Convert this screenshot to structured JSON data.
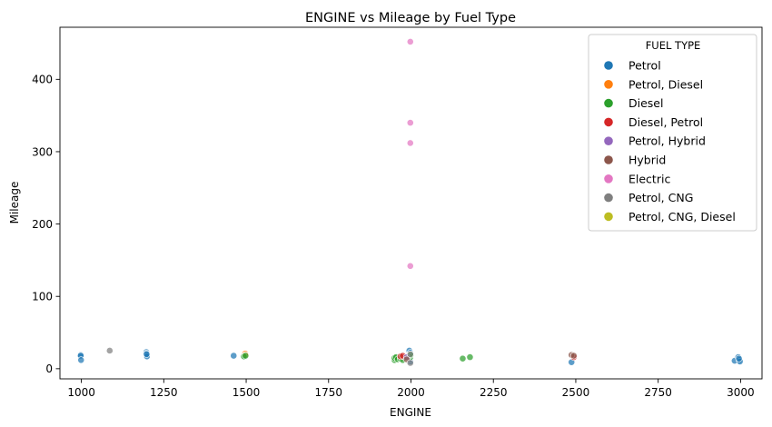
{
  "chart_data": {
    "type": "scatter",
    "title": "ENGINE vs Mileage by Fuel Type",
    "xlabel": "ENGINE",
    "ylabel": "Mileage",
    "xlim": [
      935,
      3065
    ],
    "ylim": [
      -14,
      472
    ],
    "xticks": [
      1000,
      1250,
      1500,
      1750,
      2000,
      2250,
      2500,
      2750,
      3000
    ],
    "yticks": [
      0,
      100,
      200,
      300,
      400
    ],
    "grid": false,
    "legend_title": "FUEL TYPE",
    "legend_position": "top-right",
    "series": [
      {
        "name": "Petrol",
        "color": "#1f77b4",
        "points": [
          [
            998,
            19
          ],
          [
            998,
            18
          ],
          [
            999,
            12
          ],
          [
            1197,
            23
          ],
          [
            1197,
            21
          ],
          [
            1199,
            17
          ],
          [
            1198,
            20
          ],
          [
            1462,
            18
          ],
          [
            1497,
            17
          ],
          [
            1995,
            25
          ],
          [
            1998,
            22
          ],
          [
            1998,
            18
          ],
          [
            1998,
            15
          ],
          [
            1997,
            12
          ],
          [
            1998,
            10
          ],
          [
            1995,
            13
          ],
          [
            1999,
            20
          ],
          [
            2487,
            9
          ],
          [
            2982,
            11
          ],
          [
            2993,
            16
          ],
          [
            2996,
            12
          ],
          [
            2998,
            10
          ],
          [
            2995,
            14
          ]
        ]
      },
      {
        "name": "Petrol, Diesel",
        "color": "#ff7f0e",
        "points": [
          [
            1497,
            21
          ],
          [
            1498,
            19
          ]
        ]
      },
      {
        "name": "Diesel",
        "color": "#2ca02c",
        "points": [
          [
            1493,
            17
          ],
          [
            1498,
            18
          ],
          [
            1950,
            12
          ],
          [
            1950,
            15
          ],
          [
            1955,
            16
          ],
          [
            1960,
            13
          ],
          [
            1968,
            14
          ],
          [
            1970,
            17
          ],
          [
            1975,
            12
          ],
          [
            1984,
            15
          ],
          [
            1995,
            17
          ],
          [
            1998,
            16
          ],
          [
            1999,
            19
          ],
          [
            2157,
            14
          ],
          [
            2179,
            16
          ]
        ]
      },
      {
        "name": "Diesel, Petrol",
        "color": "#d62728",
        "points": [
          [
            1968,
            17
          ],
          [
            1975,
            18
          ],
          [
            2494,
            16
          ]
        ]
      },
      {
        "name": "Petrol, Hybrid",
        "color": "#9467bd",
        "points": [
          [
            1987,
            16
          ]
        ]
      },
      {
        "name": "Hybrid",
        "color": "#8c564b",
        "points": [
          [
            1987,
            13
          ],
          [
            2487,
            19
          ],
          [
            2494,
            18
          ]
        ]
      },
      {
        "name": "Electric",
        "color": "#e377c2",
        "points": [
          [
            1998,
            452
          ],
          [
            1998,
            340
          ],
          [
            1998,
            312
          ],
          [
            1998,
            142
          ]
        ]
      },
      {
        "name": "Petrol, CNG",
        "color": "#7f7f7f",
        "points": [
          [
            1086,
            25
          ],
          [
            1998,
            8
          ],
          [
            1998,
            20
          ]
        ]
      },
      {
        "name": "Petrol, CNG, Diesel",
        "color": "#bcbd22",
        "points": []
      }
    ]
  }
}
